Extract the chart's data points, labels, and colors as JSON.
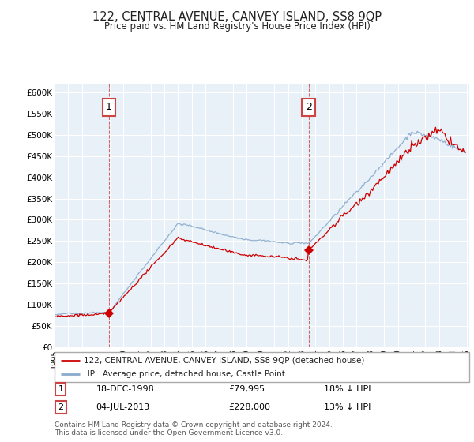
{
  "title": "122, CENTRAL AVENUE, CANVEY ISLAND, SS8 9QP",
  "subtitle": "Price paid vs. HM Land Registry's House Price Index (HPI)",
  "legend_line1": "122, CENTRAL AVENUE, CANVEY ISLAND, SS8 9QP (detached house)",
  "legend_line2": "HPI: Average price, detached house, Castle Point",
  "annotation1_date": "18-DEC-1998",
  "annotation1_price": "£79,995",
  "annotation1_hpi": "18% ↓ HPI",
  "annotation1_year": 1998.96,
  "annotation1_value": 79995,
  "annotation2_date": "04-JUL-2013",
  "annotation2_price": "£228,000",
  "annotation2_hpi": "13% ↓ HPI",
  "annotation2_year": 2013.5,
  "annotation2_value": 228000,
  "line_color_red": "#cc0000",
  "line_color_blue": "#88aacc",
  "background_color": "#ffffff",
  "plot_bg": "#e8f0f8",
  "grid_color": "#ffffff",
  "footer": "Contains HM Land Registry data © Crown copyright and database right 2024.\nThis data is licensed under the Open Government Licence v3.0.",
  "ylim": [
    0,
    620000
  ],
  "yticks": [
    0,
    50000,
    100000,
    150000,
    200000,
    250000,
    300000,
    350000,
    400000,
    450000,
    500000,
    550000,
    600000
  ],
  "ytick_labels": [
    "£0",
    "£50K",
    "£100K",
    "£150K",
    "£200K",
    "£250K",
    "£300K",
    "£350K",
    "£400K",
    "£450K",
    "£500K",
    "£550K",
    "£600K"
  ],
  "xmin": 1995.0,
  "xmax": 2025.2
}
